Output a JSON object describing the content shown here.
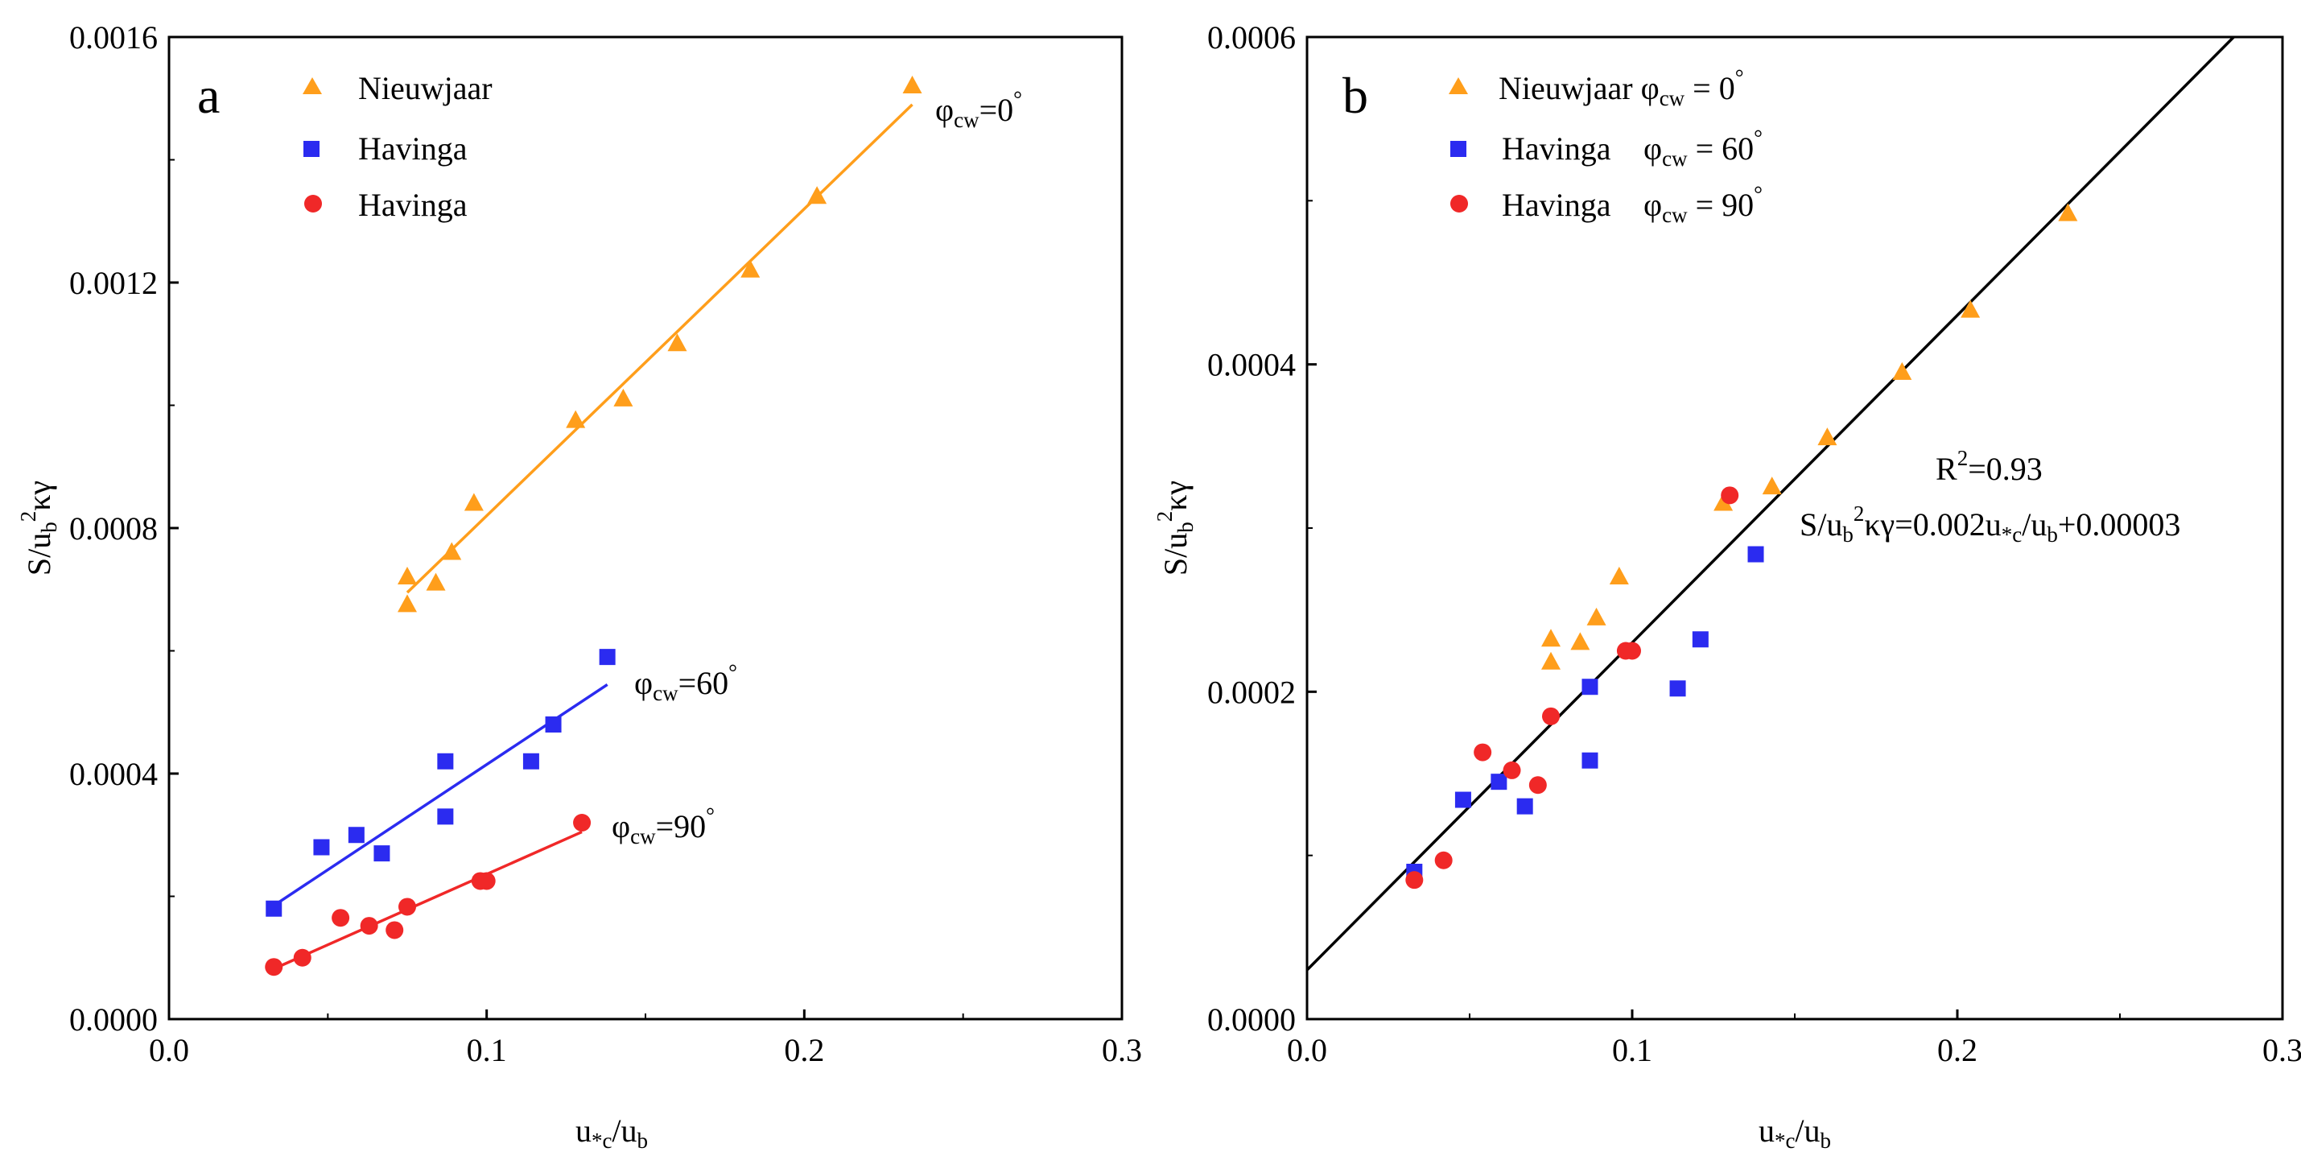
{
  "chart_data": [
    {
      "type": "scatter",
      "panel_label": "a",
      "xlabel": "u*c/ub",
      "ylabel": "S/ub2κγ",
      "xlim": [
        0.0,
        0.3
      ],
      "ylim": [
        0.0,
        0.0016
      ],
      "xticks": [
        "0.0",
        "0.1",
        "0.2",
        "0.3"
      ],
      "yticks": [
        "0.0000",
        "0.0004",
        "0.0008",
        "0.0012",
        "0.0016"
      ],
      "grid": false,
      "legend_position": "top-left",
      "series": [
        {
          "name": "Nieuwjaar",
          "marker": "triangle",
          "color": "#FF9E1B",
          "points": [
            [
              0.075,
              0.000675
            ],
            [
              0.075,
              0.00072
            ],
            [
              0.084,
              0.00071
            ],
            [
              0.089,
              0.00076
            ],
            [
              0.096,
              0.00084
            ],
            [
              0.128,
              0.000975
            ],
            [
              0.143,
              0.00101
            ],
            [
              0.16,
              0.0011
            ],
            [
              0.183,
              0.00122
            ],
            [
              0.204,
              0.00134
            ],
            [
              0.234,
              0.00152
            ]
          ],
          "fit": {
            "x": [
              0.075,
              0.234
            ],
            "y": [
              0.000695,
              0.00149
            ]
          },
          "annotation": {
            "symbol": "φ",
            "sub": "cw",
            "value": "=0",
            "sup": "°"
          }
        },
        {
          "name": "Havinga",
          "marker": "square",
          "color": "#2B2BF0",
          "points": [
            [
              0.033,
              0.00018
            ],
            [
              0.048,
              0.00028
            ],
            [
              0.059,
              0.0003
            ],
            [
              0.067,
              0.00027
            ],
            [
              0.087,
              0.00033
            ],
            [
              0.087,
              0.00042
            ],
            [
              0.114,
              0.00042
            ],
            [
              0.121,
              0.00048
            ],
            [
              0.138,
              0.00059
            ]
          ],
          "fit": {
            "x": [
              0.033,
              0.138
            ],
            "y": [
              0.000185,
              0.000545
            ]
          },
          "annotation": {
            "symbol": "φ",
            "sub": "cw",
            "value": "=60",
            "sup": "°"
          }
        },
        {
          "name": "Havinga",
          "marker": "circle",
          "color": "#F02828",
          "points": [
            [
              0.033,
              8.5e-05
            ],
            [
              0.042,
              0.0001
            ],
            [
              0.054,
              0.000165
            ],
            [
              0.063,
              0.000152
            ],
            [
              0.071,
              0.000145
            ],
            [
              0.075,
              0.000183
            ],
            [
              0.098,
              0.000225
            ],
            [
              0.1,
              0.000225
            ],
            [
              0.13,
              0.00032
            ]
          ],
          "fit": {
            "x": [
              0.033,
              0.13
            ],
            "y": [
              8.2e-05,
              0.000305
            ]
          },
          "annotation": {
            "symbol": "φ",
            "sub": "cw",
            "value": "=90",
            "sup": "°"
          }
        }
      ]
    },
    {
      "type": "scatter",
      "panel_label": "b",
      "xlabel": "u*c/ub",
      "ylabel": "S/ub2κγ",
      "xlim": [
        0.0,
        0.3
      ],
      "ylim": [
        0.0,
        0.0006
      ],
      "xticks": [
        "0.0",
        "0.1",
        "0.2",
        "0.3"
      ],
      "yticks": [
        "0.0000",
        "0.0002",
        "0.0004",
        "0.0006"
      ],
      "grid": false,
      "legend_position": "top-left",
      "series": [
        {
          "name": "Nieuwjaar",
          "legend_angle": "0",
          "marker": "triangle",
          "color": "#FF9E1B",
          "points": [
            [
              0.075,
              0.000218
            ],
            [
              0.075,
              0.000232
            ],
            [
              0.084,
              0.00023
            ],
            [
              0.089,
              0.000245
            ],
            [
              0.096,
              0.00027
            ],
            [
              0.128,
              0.000315
            ],
            [
              0.143,
              0.000325
            ],
            [
              0.16,
              0.000355
            ],
            [
              0.183,
              0.000395
            ],
            [
              0.204,
              0.000433
            ],
            [
              0.234,
              0.000492
            ]
          ]
        },
        {
          "name": "Havinga",
          "legend_angle": "60",
          "marker": "square",
          "color": "#2B2BF0",
          "points": [
            [
              0.033,
              9e-05
            ],
            [
              0.048,
              0.000134
            ],
            [
              0.059,
              0.000145
            ],
            [
              0.067,
              0.00013
            ],
            [
              0.087,
              0.000158
            ],
            [
              0.087,
              0.000203
            ],
            [
              0.114,
              0.000202
            ],
            [
              0.121,
              0.000232
            ],
            [
              0.138,
              0.000284
            ]
          ]
        },
        {
          "name": "Havinga",
          "legend_angle": "90",
          "marker": "circle",
          "color": "#F02828",
          "points": [
            [
              0.033,
              8.5e-05
            ],
            [
              0.042,
              9.7e-05
            ],
            [
              0.054,
              0.000163
            ],
            [
              0.063,
              0.000152
            ],
            [
              0.071,
              0.000143
            ],
            [
              0.075,
              0.000185
            ],
            [
              0.098,
              0.000225
            ],
            [
              0.1,
              0.000225
            ],
            [
              0.13,
              0.00032
            ]
          ]
        }
      ],
      "fit_line": {
        "slope": 0.002,
        "intercept": 3e-05,
        "color": "#000000"
      },
      "legend_phi": "φ",
      "legend_sub": "cw",
      "legend_eq": " = ",
      "legend_deg": "°",
      "r2_label": "R",
      "r2_sup": "2",
      "r2_value": "=0.93",
      "equation": {
        "p1": "S/u",
        "s1": "b",
        "p2": "2",
        "p3": "κγ=0.002u",
        "s3": "*c",
        "p4": "/u",
        "s4": "b",
        "p5": "+0.00003"
      }
    }
  ]
}
